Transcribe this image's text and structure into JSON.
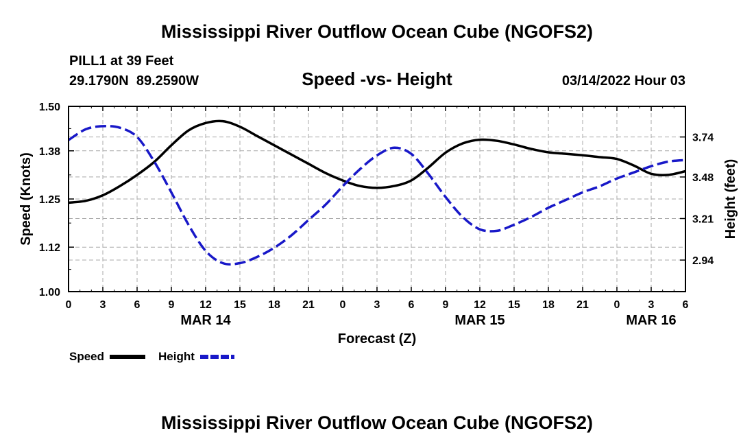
{
  "chart_data": {
    "type": "line",
    "title": "Mississippi River Outflow Ocean Cube (NGOFS2)",
    "subtitle": "Speed -vs- Height",
    "station": "PILL1 at 39 Feet",
    "coords": "29.1790N  89.2590W",
    "datetime": "03/14/2022 Hour 03",
    "xlabel": "Forecast (Z)",
    "ylabel_left": "Speed (Knots)",
    "ylabel_right": "Height (feet)",
    "x_range": [
      0,
      54
    ],
    "x_tick_labels": [
      "0",
      "3",
      "6",
      "9",
      "12",
      "15",
      "18",
      "21",
      "0",
      "3",
      "6",
      "9",
      "12",
      "15",
      "18",
      "21",
      "0",
      "3",
      "6"
    ],
    "date_labels": [
      {
        "label": "MAR 14",
        "hour": 12
      },
      {
        "label": "MAR 15",
        "hour": 36
      },
      {
        "label": "MAR 16",
        "hour": 51
      }
    ],
    "ylim_left": [
      1.0,
      1.5
    ],
    "y_ticks_left": [
      1.0,
      1.12,
      1.25,
      1.38,
      1.5
    ],
    "y_tick_labels_left": [
      "1.00",
      "1.12",
      "1.25",
      "1.38",
      "1.50"
    ],
    "ylim_right": [
      2.735,
      3.939
    ],
    "y_ticks_right": [
      2.94,
      3.21,
      3.48,
      3.74
    ],
    "y_tick_labels_right": [
      "2.94",
      "3.21",
      "3.48",
      "3.74"
    ],
    "grid": true,
    "series": [
      {
        "name": "Speed",
        "axis": "left",
        "color": "#000000",
        "style": "solid",
        "x": [
          0,
          1.5,
          3,
          4.5,
          6,
          7.5,
          9,
          10.5,
          12,
          13.5,
          15,
          16.5,
          18,
          19.5,
          21,
          22.5,
          24,
          25.5,
          27,
          28.5,
          30,
          31.5,
          33,
          34.5,
          36,
          37.5,
          39,
          40.5,
          42,
          43.5,
          45,
          46.5,
          48,
          49.5,
          51,
          52.5,
          54
        ],
        "values": [
          1.24,
          1.245,
          1.26,
          1.285,
          1.315,
          1.35,
          1.395,
          1.435,
          1.455,
          1.46,
          1.445,
          1.42,
          1.395,
          1.37,
          1.345,
          1.32,
          1.3,
          1.285,
          1.28,
          1.285,
          1.3,
          1.335,
          1.375,
          1.4,
          1.41,
          1.407,
          1.397,
          1.385,
          1.376,
          1.372,
          1.368,
          1.363,
          1.358,
          1.34,
          1.318,
          1.315,
          1.325
        ]
      },
      {
        "name": "Height",
        "axis": "right",
        "color": "#1818c8",
        "style": "dashed",
        "x": [
          0,
          1.5,
          3,
          4.5,
          6,
          7.5,
          9,
          10.5,
          12,
          13.5,
          15,
          16.5,
          18,
          19.5,
          21,
          22.5,
          24,
          25.5,
          27,
          28.5,
          30,
          31.5,
          33,
          34.5,
          36,
          37.5,
          39,
          40.5,
          42,
          43.5,
          45,
          46.5,
          48,
          49.5,
          51,
          52.5,
          54
        ],
        "values": [
          3.72,
          3.79,
          3.81,
          3.8,
          3.74,
          3.58,
          3.38,
          3.17,
          3.0,
          2.92,
          2.92,
          2.96,
          3.02,
          3.1,
          3.2,
          3.3,
          3.42,
          3.53,
          3.62,
          3.67,
          3.63,
          3.5,
          3.35,
          3.22,
          3.14,
          3.13,
          3.17,
          3.22,
          3.28,
          3.33,
          3.38,
          3.42,
          3.47,
          3.51,
          3.55,
          3.58,
          3.59
        ]
      }
    ],
    "legend": [
      {
        "label": "Speed",
        "color": "#000000",
        "style": "solid"
      },
      {
        "label": "Height",
        "color": "#1818c8",
        "style": "dashed"
      }
    ]
  },
  "footer_title": "Mississippi River Outflow Ocean Cube (NGOFS2)"
}
